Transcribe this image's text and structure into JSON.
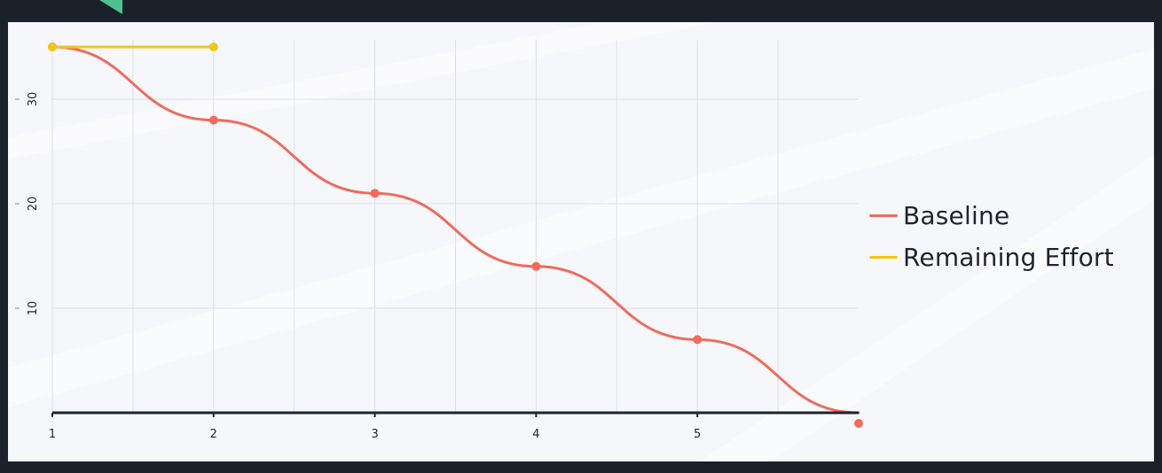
{
  "chart_data": {
    "type": "line",
    "title": "",
    "xlabel": "",
    "ylabel": "",
    "x_ticks": [
      "1",
      "2",
      "3",
      "4",
      "5"
    ],
    "y_ticks": [
      "10",
      "20",
      "30"
    ],
    "xlim": [
      1,
      6
    ],
    "ylim": [
      0,
      35
    ],
    "grid": true,
    "legend_position": "right",
    "series": [
      {
        "name": "Baseline",
        "color": "#ef6b5d",
        "curve": "smooth",
        "x": [
          1,
          2,
          3,
          4,
          5,
          6
        ],
        "y": [
          35,
          28,
          21,
          14,
          7,
          0
        ]
      },
      {
        "name": "Remaining Effort",
        "color": "#f5c518",
        "curve": "linear",
        "x": [
          1,
          2
        ],
        "y": [
          35,
          35
        ]
      }
    ]
  }
}
